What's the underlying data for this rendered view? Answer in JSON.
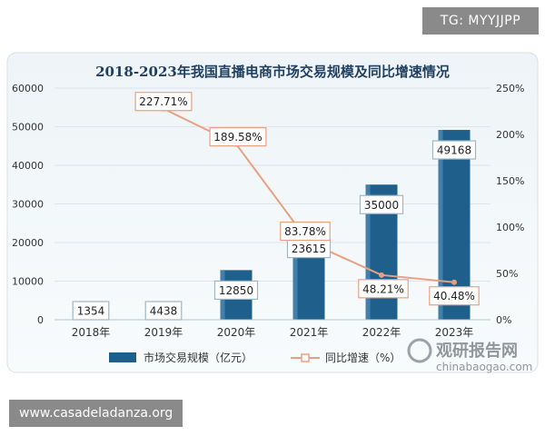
{
  "watermark": {
    "text": "TG: MYYJJPP"
  },
  "footer": {
    "text": "www.casadeladanza.org"
  },
  "logo": {
    "name": "观研报告网",
    "url": "chinabaogao.com"
  },
  "chart_data": {
    "type": "bar",
    "title": "2018-2023年我国直播电商市场交易规模及同比增速情况",
    "categories": [
      "2018年",
      "2019年",
      "2020年",
      "2021年",
      "2022年",
      "2023年"
    ],
    "series": [
      {
        "name": "市场交易规模（亿元）",
        "type": "bar",
        "axis": "left",
        "values": [
          1354,
          4438,
          12850,
          23615,
          35000,
          49168
        ],
        "labels": [
          "1354",
          "4438",
          "12850",
          "23615",
          "35000",
          "49168"
        ]
      },
      {
        "name": "同比增速（%）",
        "type": "line",
        "axis": "right",
        "values": [
          null,
          227.71,
          189.58,
          83.78,
          48.21,
          40.48
        ],
        "labels": [
          "",
          "227.71%",
          "189.58%",
          "83.78%",
          "48.21%",
          "40.48%"
        ]
      }
    ],
    "y_left": {
      "ylim": [
        0,
        60000
      ],
      "ticks": [
        "0",
        "10000",
        "20000",
        "30000",
        "40000",
        "50000",
        "60000"
      ]
    },
    "y_right": {
      "ylim": [
        0,
        250
      ],
      "ticks": [
        "0%",
        "50%",
        "100%",
        "150%",
        "200%",
        "250%"
      ]
    },
    "grid": true,
    "legend_position": "bottom",
    "colors": {
      "bar": "#1f5f8b",
      "bar_highlight": "#5b9bc4",
      "line": "#e8a083",
      "axis_text": "#333333"
    }
  }
}
